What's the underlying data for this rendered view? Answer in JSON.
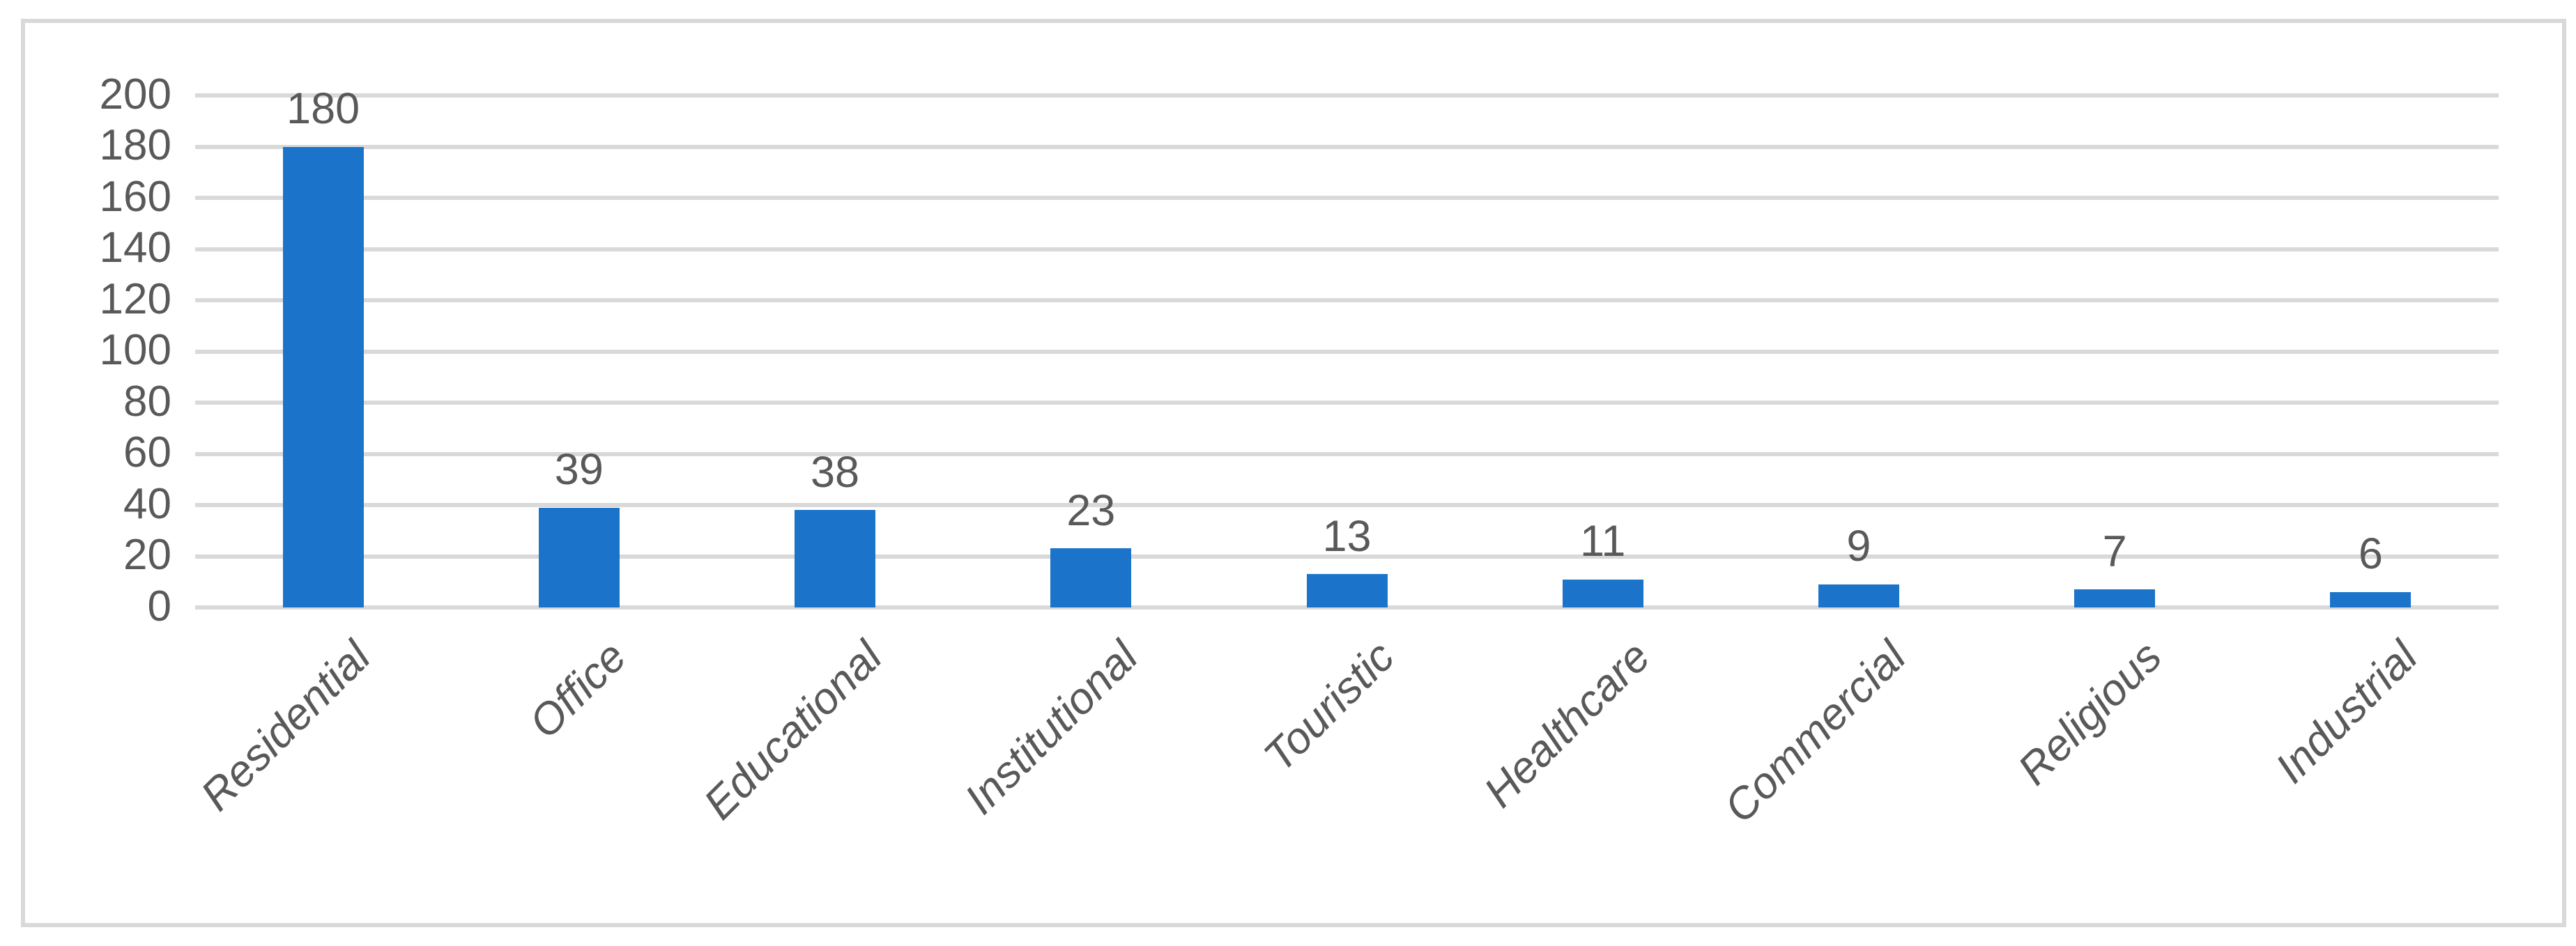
{
  "chart_data": {
    "type": "bar",
    "title": "",
    "categories": [
      "Residential",
      "Office",
      "Educational",
      "Institutional",
      "Touristic",
      "Healthcare",
      "Commercial",
      "Religious",
      "Industrial"
    ],
    "values": [
      180,
      39,
      38,
      23,
      13,
      11,
      9,
      7,
      6
    ],
    "data_labels": [
      "180",
      "39",
      "38",
      "23",
      "13",
      "11",
      "9",
      "7",
      "6"
    ],
    "xlabel": "",
    "ylabel": "",
    "ylim": [
      0,
      200
    ],
    "y_tick_step": 20,
    "y_ticks": [
      0,
      20,
      40,
      60,
      80,
      100,
      120,
      140,
      160,
      180,
      200
    ],
    "grid": "horizontal-on",
    "legend": "none",
    "colors": {
      "bar": "#1B74C9",
      "gridline": "#D9D9D9",
      "frame_border": "#D9D9D9",
      "tick_label": "#595959",
      "data_label": "#595959",
      "category_label": "#595959",
      "background": "#FFFFFF"
    }
  }
}
